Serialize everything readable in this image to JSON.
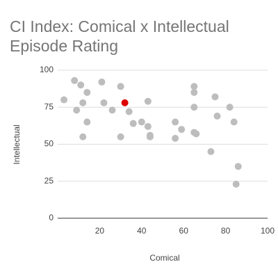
{
  "chart_data": {
    "type": "scatter",
    "title": [
      "CI Index: Comical x Intellectual",
      "Episode Rating"
    ],
    "x_label": "Comical",
    "y_label": "Intellectual",
    "x": [
      3,
      8,
      11,
      14,
      9,
      12,
      14,
      12,
      21,
      22,
      26,
      30,
      30,
      32,
      34,
      36,
      40,
      43,
      43,
      44,
      44,
      56,
      56,
      59,
      65,
      65,
      65,
      65,
      66,
      75,
      76,
      73,
      82,
      84,
      86,
      85
    ],
    "y": [
      80,
      93,
      90,
      85,
      73,
      78,
      65,
      55,
      92,
      78,
      73,
      89,
      55,
      78,
      72,
      64,
      65,
      79,
      62,
      56,
      55,
      65,
      54,
      60,
      89,
      85,
      75,
      58,
      57,
      82,
      69,
      45,
      75,
      65,
      35,
      23
    ],
    "colors": [
      "#bdbdbd",
      "#bdbdbd",
      "#bdbdbd",
      "#bdbdbd",
      "#bdbdbd",
      "#bdbdbd",
      "#bdbdbd",
      "#bdbdbd",
      "#bdbdbd",
      "#bdbdbd",
      "#bdbdbd",
      "#bdbdbd",
      "#bdbdbd",
      "#dd0000",
      "#bdbdbd",
      "#bdbdbd",
      "#bdbdbd",
      "#bdbdbd",
      "#bdbdbd",
      "#bdbdbd",
      "#bdbdbd",
      "#bdbdbd",
      "#bdbdbd",
      "#bdbdbd",
      "#bdbdbd",
      "#bdbdbd",
      "#bdbdbd",
      "#bdbdbd",
      "#bdbdbd",
      "#bdbdbd",
      "#bdbdbd",
      "#bdbdbd",
      "#bdbdbd",
      "#bdbdbd",
      "#bdbdbd",
      "#bdbdbd"
    ],
    "xlim": [
      0,
      100
    ],
    "ylim": [
      0,
      100
    ],
    "xticks": [
      20,
      40,
      60,
      80,
      100
    ],
    "yticks": [
      0,
      25,
      50,
      75,
      100
    ],
    "grid": true
  }
}
